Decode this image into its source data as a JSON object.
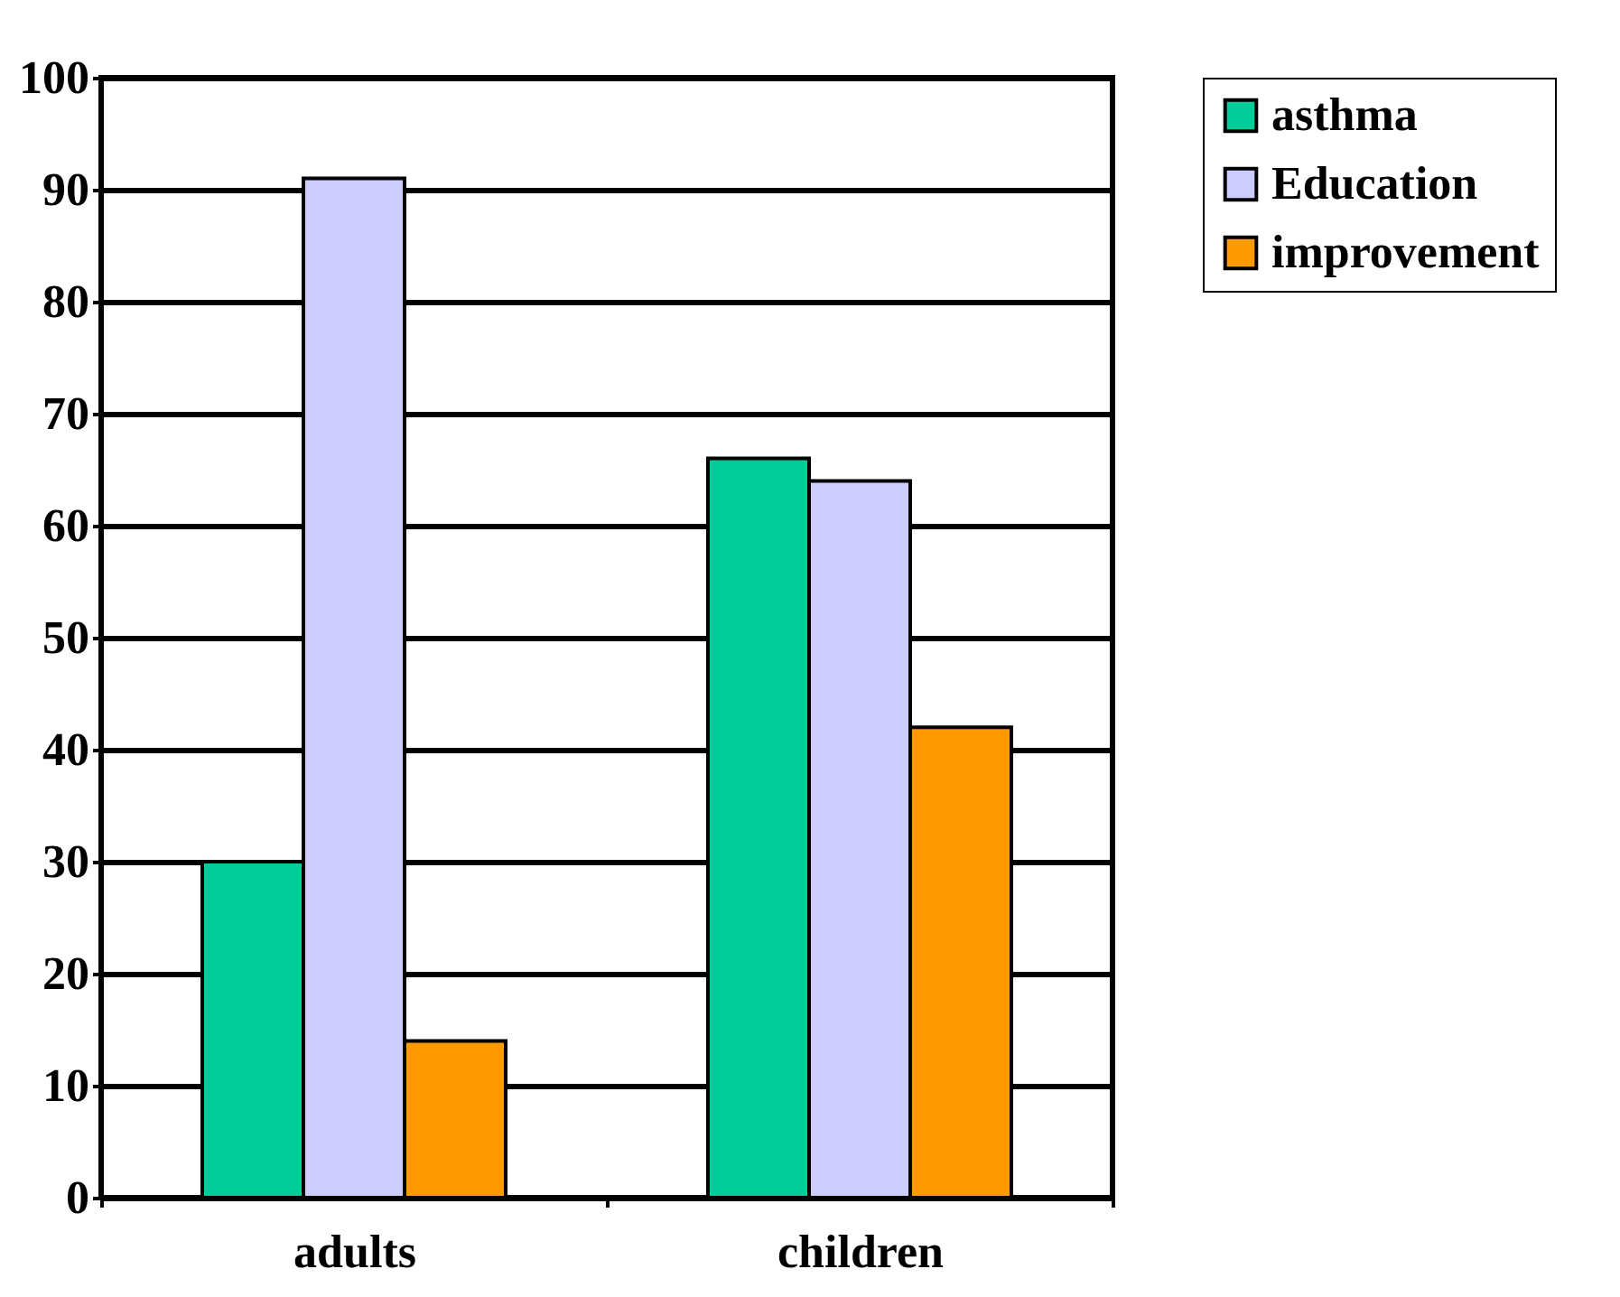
{
  "chart_data": {
    "type": "bar",
    "categories": [
      "adults",
      "children"
    ],
    "series": [
      {
        "name": "asthma",
        "color": "#00cc99",
        "values": [
          30,
          66
        ]
      },
      {
        "name": "Education",
        "color": "#ccccff",
        "values": [
          91,
          64
        ]
      },
      {
        "name": "improvement",
        "color": "#ff9900",
        "values": [
          14,
          42
        ]
      }
    ],
    "ylim": [
      0,
      100
    ],
    "yticks": [
      0,
      10,
      20,
      30,
      40,
      50,
      60,
      70,
      80,
      90,
      100
    ],
    "grid": "y",
    "legend": "right"
  }
}
